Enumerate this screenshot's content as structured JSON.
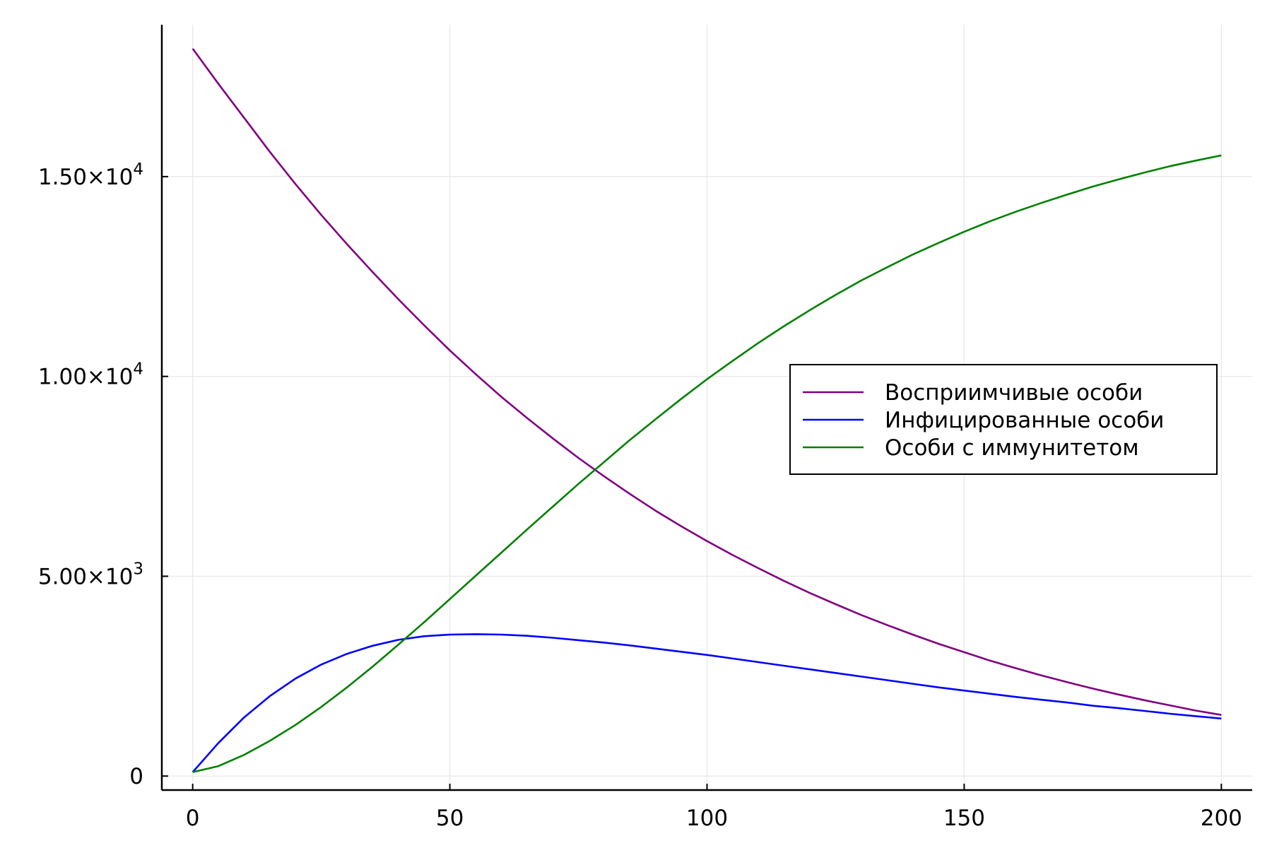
{
  "chart_data": {
    "type": "line",
    "title": "",
    "xlabel": "",
    "ylabel": "",
    "xlim": [
      -6,
      206
    ],
    "ylim": [
      -350,
      18800
    ],
    "grid": true,
    "legend_position": "right",
    "x_ticks": [
      {
        "value": 0,
        "label": "0"
      },
      {
        "value": 50,
        "label": "50"
      },
      {
        "value": 100,
        "label": "100"
      },
      {
        "value": 150,
        "label": "150"
      },
      {
        "value": 200,
        "label": "200"
      }
    ],
    "y_ticks": [
      {
        "value": 0,
        "label": "0",
        "exponent": ""
      },
      {
        "value": 5000,
        "label": "5.00×10",
        "exponent": "3"
      },
      {
        "value": 10000,
        "label": "1.00×10",
        "exponent": "4"
      },
      {
        "value": 15000,
        "label": "1.50×10",
        "exponent": "4"
      }
    ],
    "x": [
      0,
      5,
      10,
      15,
      20,
      25,
      30,
      35,
      40,
      45,
      50,
      55,
      60,
      65,
      70,
      75,
      80,
      85,
      90,
      95,
      100,
      105,
      110,
      115,
      120,
      125,
      130,
      135,
      140,
      145,
      150,
      155,
      160,
      165,
      170,
      175,
      180,
      185,
      190,
      195,
      200
    ],
    "series": [
      {
        "name": "Восприимчивые особи",
        "color": "#800080",
        "values": [
          18200,
          17320,
          16470,
          15620,
          14810,
          14040,
          13310,
          12610,
          11930,
          11280,
          10650,
          10060,
          9490,
          8960,
          8450,
          7960,
          7500,
          7060,
          6640,
          6250,
          5880,
          5530,
          5200,
          4880,
          4580,
          4300,
          4030,
          3780,
          3540,
          3310,
          3100,
          2890,
          2700,
          2520,
          2350,
          2190,
          2040,
          1900,
          1770,
          1640,
          1530
        ]
      },
      {
        "name": "Инфицированные особи",
        "color": "#0000ff",
        "values": [
          100,
          830,
          1470,
          2000,
          2440,
          2790,
          3060,
          3260,
          3410,
          3500,
          3540,
          3550,
          3540,
          3510,
          3460,
          3400,
          3340,
          3270,
          3190,
          3110,
          3030,
          2940,
          2850,
          2760,
          2670,
          2580,
          2490,
          2400,
          2310,
          2220,
          2140,
          2060,
          1980,
          1910,
          1840,
          1760,
          1700,
          1630,
          1560,
          1500,
          1440
        ]
      },
      {
        "name": "Особи с иммунитетом",
        "color": "#008000",
        "values": [
          100,
          250,
          530,
          880,
          1280,
          1730,
          2220,
          2740,
          3290,
          3850,
          4430,
          5010,
          5590,
          6170,
          6740,
          7310,
          7860,
          8410,
          8930,
          9440,
          9930,
          10390,
          10840,
          11260,
          11660,
          12040,
          12400,
          12730,
          13050,
          13340,
          13620,
          13880,
          14120,
          14340,
          14550,
          14750,
          14930,
          15100,
          15260,
          15400,
          15530
        ]
      }
    ]
  }
}
